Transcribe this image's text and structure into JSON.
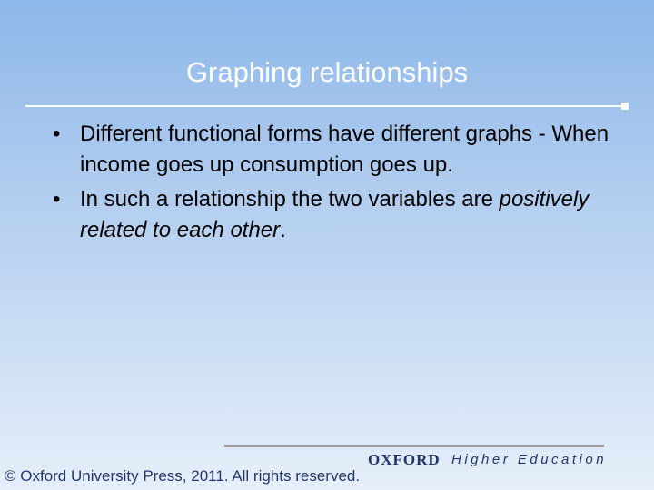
{
  "slide": {
    "title": "Graphing relationships",
    "bullets": [
      {
        "text": "Different functional forms have different graphs - When income goes up consumption goes up."
      },
      {
        "plain": "In such a relationship the two variables are",
        "italic": "positively related to each other",
        "end": "."
      }
    ],
    "footer": {
      "logo": "OXFORD",
      "division": "Higher Education",
      "copyright": "© Oxford University Press, 2011. All rights reserved."
    }
  }
}
